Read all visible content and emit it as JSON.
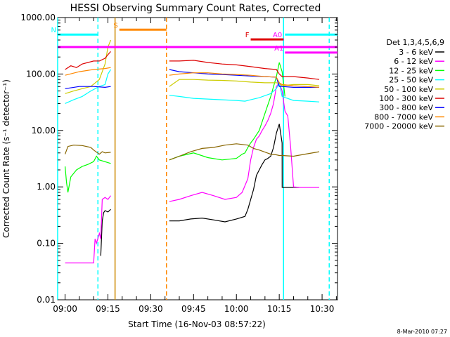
{
  "chart_data": {
    "type": "line",
    "title": "HESSI Observing Summary Count Rates, Corrected",
    "xlabel": "Start Time (16-Nov-03 08:57:22)",
    "ylabel": "Corrected Count Rate (s⁻¹ detector⁻¹)",
    "footer": "8-Mar-2010 07:27",
    "log_y": true,
    "ylim": [
      0.01,
      1000
    ],
    "y_tick_labels": [
      "0.01",
      "0.10",
      "1.00",
      "10.00",
      "100.00",
      "1000.00"
    ],
    "y_tick_values": [
      0.01,
      0.1,
      1,
      10,
      100,
      1000
    ],
    "x_range_minutes": [
      -2.6,
      95.4
    ],
    "x_tick_labels": [
      "09:00",
      "09:15",
      "09:30",
      "09:45",
      "10:00",
      "10:15",
      "10:30"
    ],
    "x_tick_minutes": [
      0,
      15,
      30,
      45,
      60,
      75,
      90
    ],
    "legend": {
      "header": "Det 1,3,4,5,6,9",
      "entries": [
        "3 - 6 keV",
        "6 - 12 keV",
        "12 - 25 keV",
        "25 - 50 keV",
        "50 - 100 keV",
        "100 - 300 keV",
        "300 - 800 keV",
        "800 - 7000 keV",
        "7000 - 20000 keV"
      ]
    },
    "series": [
      {
        "name": "3 - 6 keV",
        "color": "#000000",
        "points": [
          [
            12.5,
            0.06
          ],
          [
            13,
            0.25
          ],
          [
            13.5,
            0.35
          ],
          [
            14,
            0.38
          ],
          [
            15,
            0.36
          ],
          [
            16,
            0.4
          ],
          [
            36.5,
            0.25
          ],
          [
            40,
            0.25
          ],
          [
            44,
            0.27
          ],
          [
            48,
            0.28
          ],
          [
            52,
            0.26
          ],
          [
            56,
            0.24
          ],
          [
            60,
            0.27
          ],
          [
            63,
            0.3
          ],
          [
            64,
            0.4
          ],
          [
            66,
            0.9
          ],
          [
            67,
            1.6
          ],
          [
            68,
            2.0
          ],
          [
            69,
            2.5
          ],
          [
            70,
            3.0
          ],
          [
            71,
            3.2
          ],
          [
            72,
            3.5
          ],
          [
            73,
            5
          ],
          [
            74,
            9
          ],
          [
            75,
            13
          ],
          [
            76,
            6
          ],
          [
            76.01,
            0.98
          ],
          [
            82,
            0.98
          ]
        ]
      },
      {
        "name": "6 - 12 keV",
        "color": "#ff00ff",
        "points": [
          [
            0,
            0.045
          ],
          [
            8,
            0.045
          ],
          [
            10,
            0.045
          ],
          [
            10.5,
            0.12
          ],
          [
            11,
            0.1
          ],
          [
            12,
            0.15
          ],
          [
            12.5,
            0.12
          ],
          [
            13,
            0.6
          ],
          [
            14,
            0.65
          ],
          [
            15,
            0.6
          ],
          [
            16,
            0.7
          ],
          [
            36.5,
            0.55
          ],
          [
            40,
            0.6
          ],
          [
            44,
            0.7
          ],
          [
            48,
            0.8
          ],
          [
            52,
            0.7
          ],
          [
            56,
            0.6
          ],
          [
            60,
            0.65
          ],
          [
            62,
            0.8
          ],
          [
            64,
            1.4
          ],
          [
            65,
            3
          ],
          [
            66,
            5
          ],
          [
            67,
            7
          ],
          [
            68,
            8
          ],
          [
            69,
            10
          ],
          [
            70,
            12
          ],
          [
            71,
            15
          ],
          [
            72,
            20
          ],
          [
            73,
            30
          ],
          [
            74,
            60
          ],
          [
            75,
            70
          ],
          [
            76,
            50
          ],
          [
            77,
            22
          ],
          [
            78,
            18
          ],
          [
            79,
            5
          ],
          [
            80,
            1.0
          ],
          [
            82,
            0.98
          ],
          [
            89,
            0.98
          ]
        ]
      },
      {
        "name": "12 - 25 keV",
        "color": "#00ff00",
        "points": [
          [
            0,
            2.3
          ],
          [
            0.5,
            1.2
          ],
          [
            1,
            0.8
          ],
          [
            2,
            1.5
          ],
          [
            4,
            2.0
          ],
          [
            6,
            2.3
          ],
          [
            8,
            2.5
          ],
          [
            10,
            2.8
          ],
          [
            11,
            3.5
          ],
          [
            12,
            3.0
          ],
          [
            16,
            2.6
          ],
          [
            36.5,
            3.0
          ],
          [
            40,
            3.5
          ],
          [
            45,
            4
          ],
          [
            50,
            3.3
          ],
          [
            55,
            3.0
          ],
          [
            60,
            3.2
          ],
          [
            62,
            3.8
          ],
          [
            63,
            4
          ],
          [
            64,
            5
          ],
          [
            65,
            6
          ],
          [
            66,
            7
          ],
          [
            68,
            10
          ],
          [
            70,
            20
          ],
          [
            72,
            40
          ],
          [
            74,
            90
          ],
          [
            75,
            160
          ],
          [
            76,
            110
          ],
          [
            77,
            40
          ],
          [
            89,
            38
          ]
        ]
      },
      {
        "name": "25 - 50 keV",
        "color": "#00ffff",
        "points": [
          [
            0,
            30
          ],
          [
            3,
            35
          ],
          [
            6,
            40
          ],
          [
            9,
            50
          ],
          [
            12,
            60
          ],
          [
            14,
            65
          ],
          [
            15,
            100
          ],
          [
            16,
            120
          ],
          [
            36.5,
            42
          ],
          [
            40,
            40
          ],
          [
            45,
            37
          ],
          [
            50,
            36
          ],
          [
            55,
            35
          ],
          [
            60,
            34
          ],
          [
            63,
            33
          ],
          [
            65,
            35
          ],
          [
            68,
            38
          ],
          [
            72,
            45
          ],
          [
            74,
            55
          ],
          [
            75,
            70
          ],
          [
            76,
            40
          ],
          [
            80,
            34
          ],
          [
            85,
            33
          ],
          [
            89,
            32
          ]
        ]
      },
      {
        "name": "50 - 100 keV",
        "color": "#cccc00",
        "points": [
          [
            0,
            45
          ],
          [
            3,
            50
          ],
          [
            6,
            55
          ],
          [
            9,
            60
          ],
          [
            12,
            80
          ],
          [
            14,
            150
          ],
          [
            15,
            300
          ],
          [
            16,
            400
          ],
          [
            36.5,
            60
          ],
          [
            40,
            80
          ],
          [
            45,
            80
          ],
          [
            50,
            78
          ],
          [
            55,
            77
          ],
          [
            60,
            75
          ],
          [
            65,
            72
          ],
          [
            70,
            70
          ],
          [
            74,
            70
          ],
          [
            75,
            68
          ],
          [
            76,
            62
          ],
          [
            80,
            65
          ],
          [
            85,
            65
          ],
          [
            89,
            62
          ]
        ]
      },
      {
        "name": "100 - 300 keV",
        "color": "#dd0000",
        "points": [
          [
            0,
            120
          ],
          [
            2,
            140
          ],
          [
            4,
            130
          ],
          [
            6,
            150
          ],
          [
            8,
            160
          ],
          [
            10,
            170
          ],
          [
            12,
            170
          ],
          [
            14,
            190
          ],
          [
            15,
            220
          ],
          [
            16,
            250
          ],
          [
            36.5,
            170
          ],
          [
            40,
            170
          ],
          [
            45,
            175
          ],
          [
            50,
            160
          ],
          [
            55,
            150
          ],
          [
            60,
            145
          ],
          [
            65,
            135
          ],
          [
            70,
            125
          ],
          [
            74,
            120
          ],
          [
            75,
            100
          ],
          [
            76,
            90
          ],
          [
            80,
            90
          ],
          [
            85,
            85
          ],
          [
            89,
            80
          ]
        ]
      },
      {
        "name": "300 - 800 keV",
        "color": "#0000ff",
        "points": [
          [
            0,
            55
          ],
          [
            5,
            60
          ],
          [
            10,
            60
          ],
          [
            14,
            58
          ],
          [
            16,
            60
          ],
          [
            36.5,
            120
          ],
          [
            40,
            110
          ],
          [
            45,
            105
          ],
          [
            50,
            100
          ],
          [
            55,
            98
          ],
          [
            60,
            95
          ],
          [
            65,
            92
          ],
          [
            70,
            90
          ],
          [
            74,
            88
          ],
          [
            75,
            60
          ],
          [
            76,
            60
          ],
          [
            80,
            58
          ],
          [
            85,
            58
          ],
          [
            89,
            58
          ]
        ]
      },
      {
        "name": "800 - 7000 keV",
        "color": "#ff8800",
        "points": [
          [
            0,
            95
          ],
          [
            5,
            110
          ],
          [
            10,
            120
          ],
          [
            14,
            125
          ],
          [
            16,
            130
          ],
          [
            36.5,
            95
          ],
          [
            40,
            100
          ],
          [
            45,
            105
          ],
          [
            50,
            105
          ],
          [
            55,
            100
          ],
          [
            60,
            98
          ],
          [
            65,
            95
          ],
          [
            70,
            90
          ],
          [
            74,
            88
          ],
          [
            75,
            70
          ],
          [
            76,
            65
          ],
          [
            80,
            62
          ],
          [
            85,
            60
          ],
          [
            89,
            58
          ]
        ]
      },
      {
        "name": "7000 - 20000 keV",
        "color": "#886600",
        "points": [
          [
            0,
            3.8
          ],
          [
            1,
            5.2
          ],
          [
            3,
            5.5
          ],
          [
            6,
            5.4
          ],
          [
            9,
            5.0
          ],
          [
            10,
            4.5
          ],
          [
            12,
            3.8
          ],
          [
            13,
            4.2
          ],
          [
            14,
            4.0
          ],
          [
            16,
            4.1
          ],
          [
            36.5,
            3.0
          ],
          [
            40,
            3.5
          ],
          [
            44,
            4.2
          ],
          [
            48,
            4.8
          ],
          [
            52,
            5.0
          ],
          [
            56,
            5.5
          ],
          [
            60,
            5.8
          ],
          [
            64,
            5.5
          ],
          [
            66,
            4.8
          ],
          [
            68,
            4.5
          ],
          [
            72,
            3.8
          ],
          [
            74,
            3.7
          ],
          [
            75,
            3.6
          ],
          [
            76,
            3.6
          ],
          [
            80,
            3.5
          ],
          [
            84,
            3.8
          ],
          [
            89,
            4.2
          ]
        ]
      }
    ],
    "segments": [
      {
        "label": "N",
        "color": "#00ffff",
        "x": [
          -2.6,
          11.5
        ],
        "y": 500
      },
      {
        "label": "S",
        "color": "#ff8800",
        "x": [
          19,
          35.5
        ],
        "y": 610
      },
      {
        "label": "",
        "color": "#ff00ff",
        "x": [
          -2.6,
          95.4
        ],
        "y": 300
      },
      {
        "label": "F",
        "color": "#dd0000",
        "x": [
          65,
          76.5
        ],
        "y": 410
      },
      {
        "label": "A0",
        "color": "#ff00ff",
        "x": [
          76.5,
          76.6
        ],
        "y": 410
      },
      {
        "label": "",
        "color": "#00ffff",
        "x": [
          77,
          95.4
        ],
        "y": 500
      },
      {
        "label": "A1",
        "color": "#ff00ff",
        "x": [
          77,
          95.4
        ],
        "y": 240
      }
    ],
    "vertical_lines": [
      {
        "x": -2.6,
        "color": "#00ffff",
        "style": "solid"
      },
      {
        "x": 11.5,
        "color": "#00ffff",
        "style": "dashed"
      },
      {
        "x": 17.5,
        "color": "#cc8800",
        "style": "solid"
      },
      {
        "x": 35.5,
        "color": "#ff8800",
        "style": "dashed"
      },
      {
        "x": 76.5,
        "color": "#00ffff",
        "style": "solid"
      },
      {
        "x": 92.5,
        "color": "#00ffff",
        "style": "dashed"
      }
    ]
  }
}
